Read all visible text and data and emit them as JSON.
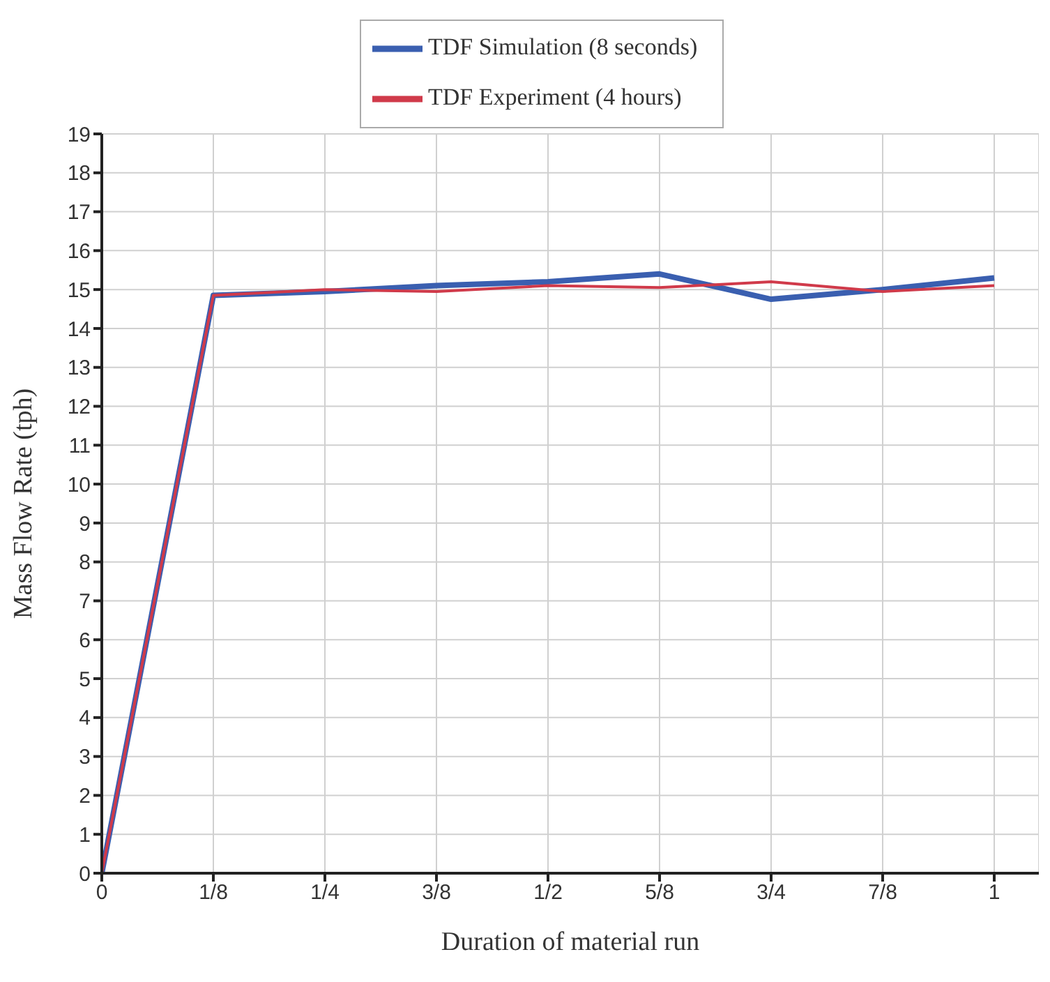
{
  "chart_data": {
    "type": "line",
    "xlabel": "Duration of material run",
    "ylabel": "Mass Flow Rate (tph)",
    "x": [
      0,
      0.125,
      0.25,
      0.375,
      0.5,
      0.625,
      0.75,
      0.875,
      1
    ],
    "series": [
      {
        "name": "TDF Simulation (8 seconds)",
        "color": "#3a5fb0",
        "values": [
          0,
          14.85,
          14.95,
          15.1,
          15.2,
          15.4,
          14.75,
          15.0,
          15.3
        ]
      },
      {
        "name": "TDF Experiment (4 hours)",
        "color": "#d03a4a",
        "values": [
          0,
          14.85,
          15.0,
          14.95,
          15.1,
          15.05,
          15.2,
          14.95,
          15.1
        ]
      }
    ],
    "xlim": [
      0,
      1.05
    ],
    "xticks": [
      0,
      {
        "value": 0.125,
        "label": "1/8"
      },
      {
        "value": 0.25,
        "label": "1/4"
      },
      {
        "value": 0.375,
        "label": "3/8"
      },
      {
        "value": 0.5,
        "label": "1/2"
      },
      {
        "value": 0.625,
        "label": "5/8"
      },
      {
        "value": 0.75,
        "label": "3/4"
      },
      {
        "value": 0.875,
        "label": "7/8"
      },
      1
    ],
    "ylim": [
      0,
      19
    ],
    "yticks": [
      0,
      1,
      2,
      3,
      4,
      5,
      6,
      7,
      8,
      9,
      10,
      11,
      12,
      13,
      14,
      15,
      16,
      17,
      18,
      19
    ],
    "grid": true,
    "legend": "top",
    "marker": "none",
    "line_style": "solid"
  }
}
